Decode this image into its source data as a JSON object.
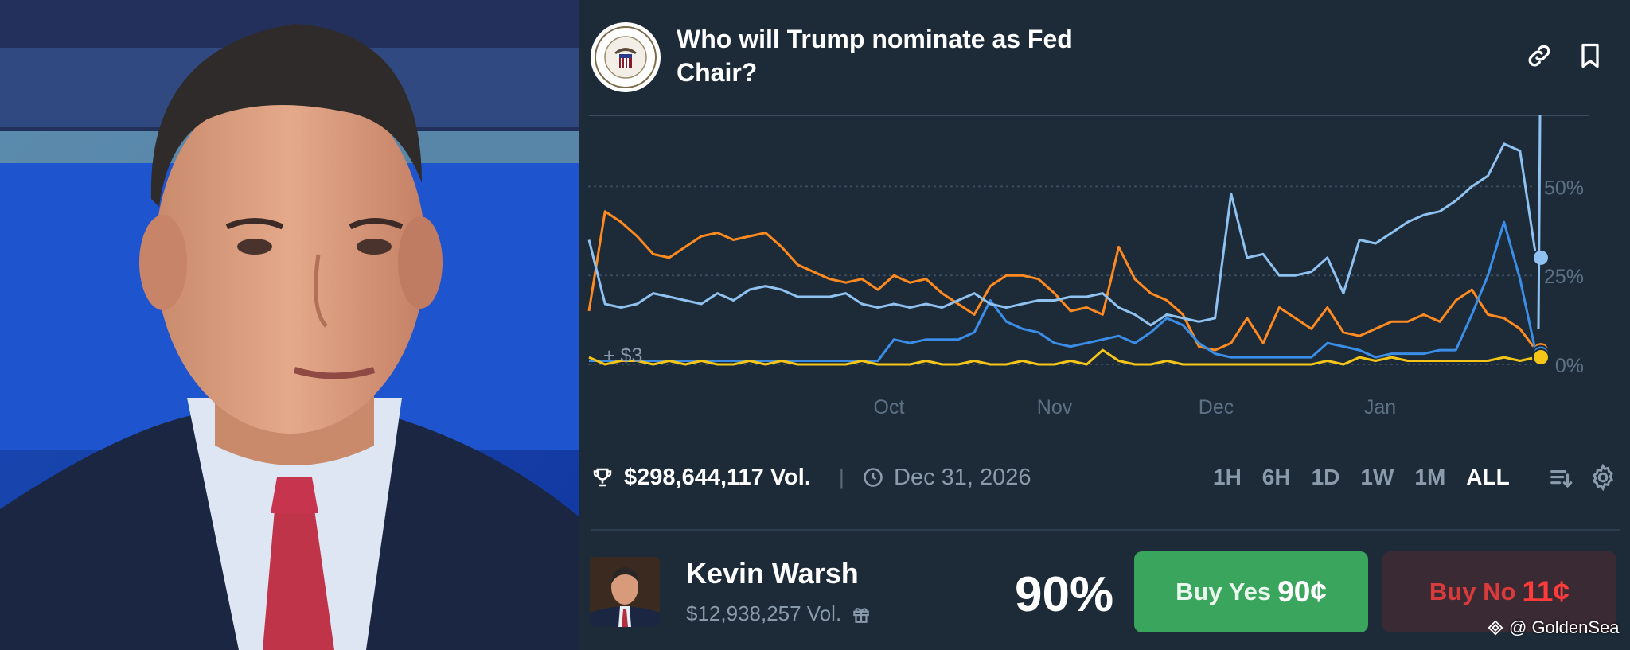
{
  "header": {
    "title": "Who will Trump nominate as Fed Chair?",
    "logo_icon": "federal-reserve-seal-icon",
    "link_icon": "link-icon",
    "bookmark_icon": "bookmark-icon"
  },
  "chart_data": {
    "type": "line",
    "x_tick_labels": [
      "Oct",
      "Nov",
      "Dec",
      "Jan"
    ],
    "y_tick_labels": [
      "50%",
      "25%",
      "0%"
    ],
    "ylim": [
      0,
      70
    ],
    "annotation": "+ $3",
    "grid": "horizontal dotted",
    "series": [
      {
        "color": "#ff8a1f",
        "values": [
          15,
          43,
          40,
          36,
          31,
          30,
          33,
          36,
          37,
          35,
          36,
          37,
          33,
          28,
          26,
          24,
          23,
          24,
          21,
          25,
          23,
          24,
          20,
          17,
          14,
          22,
          25,
          25,
          24,
          20,
          15,
          16,
          14,
          33,
          24,
          20,
          18,
          14,
          5,
          4,
          6,
          13,
          6,
          16,
          13,
          10,
          16,
          9,
          8,
          10,
          12,
          12,
          14,
          12,
          18,
          21,
          14,
          13,
          10,
          4
        ]
      },
      {
        "color": "#3b8ee8",
        "values": [
          1,
          1,
          1,
          1,
          1,
          1,
          1,
          1,
          1,
          1,
          1,
          1,
          1,
          1,
          1,
          1,
          1,
          1,
          1,
          7,
          6,
          7,
          7,
          7,
          9,
          18,
          12,
          10,
          9,
          6,
          5,
          6,
          7,
          8,
          6,
          9,
          13,
          11,
          6,
          3,
          2,
          2,
          2,
          2,
          2,
          2,
          6,
          5,
          4,
          2,
          3,
          3,
          3,
          4,
          4,
          14,
          25,
          40,
          24,
          3
        ]
      },
      {
        "color": "#8fc2f0",
        "values": [
          35,
          17,
          16,
          17,
          20,
          19,
          18,
          17,
          20,
          18,
          21,
          22,
          21,
          19,
          19,
          19,
          20,
          17,
          16,
          17,
          16,
          17,
          16,
          18,
          20,
          17,
          16,
          17,
          18,
          18,
          19,
          19,
          20,
          16,
          14,
          11,
          14,
          13,
          12,
          13,
          48,
          30,
          31,
          25,
          25,
          26,
          30,
          20,
          35,
          34,
          37,
          40,
          42,
          43,
          46,
          50,
          53,
          62,
          60,
          30
        ]
      },
      {
        "color": "#f5c518",
        "values": [
          2,
          0,
          1,
          1,
          0,
          1,
          0,
          1,
          0,
          0,
          1,
          0,
          1,
          0,
          0,
          0,
          0,
          1,
          0,
          0,
          0,
          1,
          0,
          0,
          1,
          0,
          0,
          1,
          0,
          0,
          1,
          0,
          4,
          1,
          0,
          0,
          1,
          0,
          0,
          0,
          0,
          0,
          0,
          0,
          0,
          0,
          1,
          0,
          2,
          1,
          2,
          1,
          1,
          1,
          1,
          1,
          1,
          2,
          1,
          2
        ]
      }
    ]
  },
  "stats": {
    "volume": "$298,644,117 Vol.",
    "separator": "|",
    "end_date": "Dec 31, 2026",
    "trophy_icon": "trophy-icon",
    "clock_icon": "clock-icon"
  },
  "time_ranges": [
    {
      "label": "1H"
    },
    {
      "label": "6H"
    },
    {
      "label": "1D"
    },
    {
      "label": "1W"
    },
    {
      "label": "1M"
    },
    {
      "label": "ALL",
      "active": true
    }
  ],
  "toolbar": {
    "sort_icon": "sort-icon",
    "settings_icon": "gear-icon"
  },
  "candidate": {
    "name": "Kevin Warsh",
    "volume": "$12,938,257 Vol.",
    "gift_icon": "gift-icon",
    "probability": "90%",
    "buy_yes_label": "Buy Yes",
    "buy_yes_price": "90¢",
    "buy_no_label": "Buy No",
    "buy_no_price": "11¢"
  },
  "watermark": "@ GoldenSea",
  "colors": {
    "panel_bg": "#1d2b39",
    "yes_green": "#3aa55d",
    "no_red": "#d83b3b"
  }
}
